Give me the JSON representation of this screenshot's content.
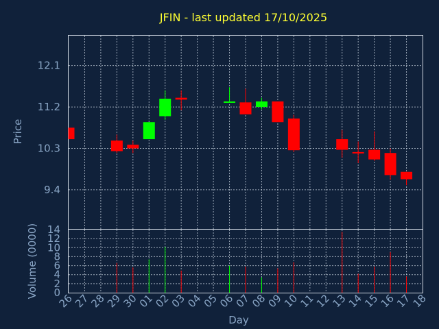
{
  "chart_data": {
    "type": "candlestick",
    "title": "JFIN - last updated 17/10/2025",
    "xlabel": "Day",
    "colors": {
      "up": "#00ff00",
      "down": "#ff0000",
      "background": "#10213a",
      "text": "#8aa6c6",
      "title": "#ffff33"
    },
    "x_ticks": [
      "26",
      "27",
      "28",
      "29",
      "30",
      "01",
      "02",
      "03",
      "04",
      "05",
      "06",
      "07",
      "08",
      "09",
      "10",
      "11",
      "12",
      "13",
      "14",
      "15",
      "16",
      "17",
      "18"
    ],
    "price_panel": {
      "ylabel": "Price",
      "yticks": [
        9.4,
        10.3,
        11.2,
        12.1
      ],
      "ylim": [
        8.55,
        12.75
      ],
      "grid": true
    },
    "volume_panel": {
      "ylabel": "Volume (0000)",
      "yticks": [
        0,
        2,
        4,
        6,
        8,
        10,
        12,
        14
      ],
      "ylim": [
        0,
        14
      ],
      "grid": true
    },
    "candles": [
      {
        "day": "26",
        "open": 10.75,
        "close": 10.5,
        "high": 10.75,
        "low": 10.5,
        "volume": 0
      },
      {
        "day": "29",
        "open": 10.47,
        "close": 10.24,
        "high": 10.6,
        "low": 10.2,
        "volume": 6.6
      },
      {
        "day": "30",
        "open": 10.38,
        "close": 10.3,
        "high": 10.47,
        "low": 10.2,
        "volume": 5.6
      },
      {
        "day": "01",
        "open": 10.5,
        "close": 10.87,
        "high": 10.87,
        "low": 10.5,
        "volume": 7.4
      },
      {
        "day": "02",
        "open": 11.0,
        "close": 11.38,
        "high": 11.56,
        "low": 10.92,
        "volume": 10.2
      },
      {
        "day": "03",
        "open": 11.4,
        "close": 11.36,
        "high": 11.56,
        "low": 11.13,
        "volume": 4.9
      },
      {
        "day": "06",
        "open": 11.3,
        "close": 11.32,
        "high": 11.63,
        "low": 11.3,
        "volume": 6.0
      },
      {
        "day": "07",
        "open": 11.3,
        "close": 11.04,
        "high": 11.6,
        "low": 11.04,
        "volume": 5.8
      },
      {
        "day": "08",
        "open": 11.2,
        "close": 11.32,
        "high": 11.4,
        "low": 11.15,
        "volume": 3.4
      },
      {
        "day": "09",
        "open": 11.32,
        "close": 10.87,
        "high": 11.32,
        "low": 10.87,
        "volume": 5.4
      },
      {
        "day": "10",
        "open": 10.95,
        "close": 10.26,
        "high": 11.03,
        "low": 10.22,
        "volume": 6.8
      },
      {
        "day": "13",
        "open": 10.5,
        "close": 10.27,
        "high": 10.7,
        "low": 10.1,
        "volume": 13.5
      },
      {
        "day": "14",
        "open": 10.22,
        "close": 10.2,
        "high": 10.45,
        "low": 9.98,
        "volume": 4.2
      },
      {
        "day": "15",
        "open": 10.27,
        "close": 10.06,
        "high": 10.67,
        "low": 10.03,
        "volume": 5.8
      },
      {
        "day": "16",
        "open": 10.2,
        "close": 9.72,
        "high": 10.3,
        "low": 9.62,
        "volume": 9.0
      },
      {
        "day": "17",
        "open": 9.79,
        "close": 9.63,
        "high": 9.79,
        "low": 9.5,
        "volume": 3.6
      }
    ]
  }
}
